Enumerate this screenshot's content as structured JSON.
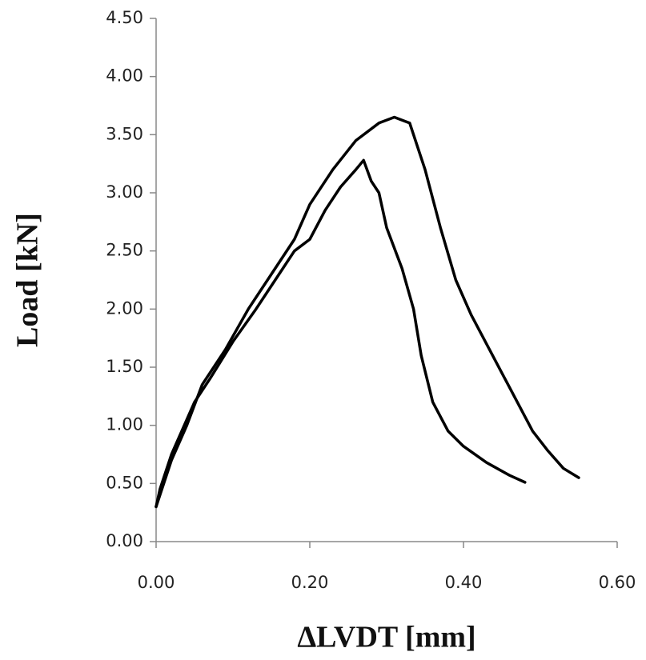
{
  "chart_data": {
    "type": "line",
    "x_label": "ΔLVDT [mm]",
    "y_label": "Load [kN]",
    "xlim": [
      0,
      0.6
    ],
    "ylim": [
      0,
      4.5
    ],
    "xticks": [
      {
        "value": 0,
        "label": "0.00"
      },
      {
        "value": 0.2,
        "label": "0.20"
      },
      {
        "value": 0.4,
        "label": "0.40"
      },
      {
        "value": 0.6,
        "label": "0.60"
      }
    ],
    "yticks": [
      {
        "value": 0,
        "label": "0.00"
      },
      {
        "value": 0.5,
        "label": "0.50"
      },
      {
        "value": 1,
        "label": "1.00"
      },
      {
        "value": 1.5,
        "label": "1.50"
      },
      {
        "value": 2,
        "label": "2.00"
      },
      {
        "value": 2.5,
        "label": "2.50"
      },
      {
        "value": 3,
        "label": "3.00"
      },
      {
        "value": 3.5,
        "label": "3.50"
      },
      {
        "value": 4,
        "label": "4.00"
      },
      {
        "value": 4.5,
        "label": "4.50"
      }
    ],
    "grid": false,
    "series": [
      {
        "color": "#000000",
        "x": [
          0,
          0.005,
          0.01,
          0.02,
          0.03,
          0.05,
          0.07,
          0.1,
          0.13,
          0.16,
          0.18,
          0.2,
          0.22,
          0.24,
          0.26,
          0.27,
          0.28,
          0.29,
          0.3,
          0.32,
          0.335,
          0.345,
          0.36,
          0.38,
          0.4,
          0.43,
          0.46,
          0.48
        ],
        "values": [
          0.3,
          0.45,
          0.55,
          0.75,
          0.9,
          1.2,
          1.4,
          1.72,
          2.0,
          2.3,
          2.5,
          2.6,
          2.85,
          3.05,
          3.2,
          3.28,
          3.1,
          3.0,
          2.7,
          2.35,
          2.0,
          1.6,
          1.2,
          0.95,
          0.82,
          0.68,
          0.57,
          0.51
        ]
      },
      {
        "color": "#000000",
        "x": [
          0,
          0.01,
          0.02,
          0.04,
          0.06,
          0.09,
          0.12,
          0.15,
          0.18,
          0.2,
          0.23,
          0.26,
          0.29,
          0.31,
          0.33,
          0.35,
          0.37,
          0.39,
          0.41,
          0.43,
          0.45,
          0.47,
          0.49,
          0.51,
          0.53,
          0.55
        ],
        "values": [
          0.3,
          0.5,
          0.7,
          1.0,
          1.35,
          1.65,
          2.0,
          2.3,
          2.6,
          2.9,
          3.2,
          3.45,
          3.6,
          3.65,
          3.6,
          3.2,
          2.7,
          2.25,
          1.95,
          1.7,
          1.45,
          1.2,
          0.95,
          0.78,
          0.63,
          0.55
        ]
      }
    ]
  }
}
